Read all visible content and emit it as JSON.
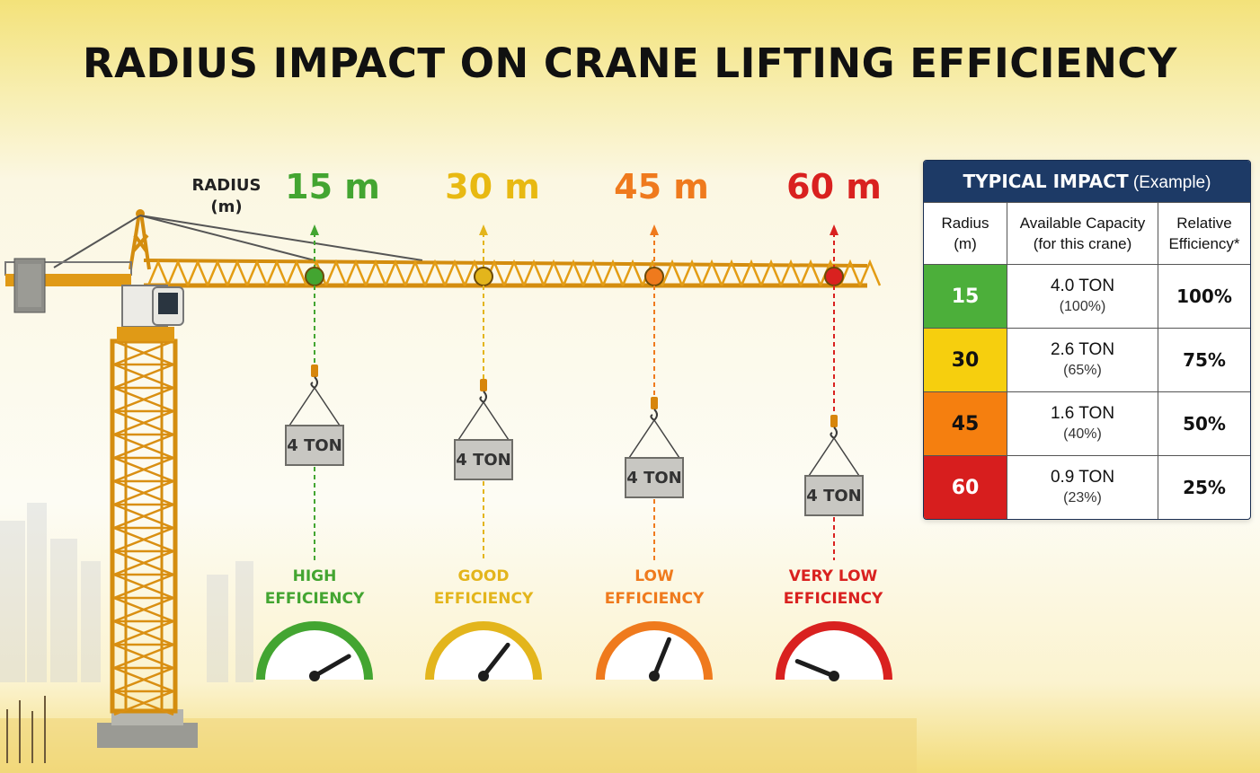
{
  "title": "RADIUS IMPACT ON CRANE LIFTING EFFICIENCY",
  "radius_caption": [
    "RADIUS",
    "(m)"
  ],
  "positions": [
    {
      "radius": "15 m",
      "load": "4 TON",
      "efficiency": [
        "HIGH",
        "EFFICIENCY"
      ],
      "color": "#43a531",
      "needle": "high"
    },
    {
      "radius": "30 m",
      "load": "4 TON",
      "efficiency": [
        "GOOD",
        "EFFICIENCY"
      ],
      "color": "#e3b51c",
      "needle": "good"
    },
    {
      "radius": "45 m",
      "load": "4 TON",
      "efficiency": [
        "LOW",
        "EFFICIENCY"
      ],
      "color": "#ef7a1d",
      "needle": "low"
    },
    {
      "radius": "60 m",
      "load": "4 TON",
      "efficiency": [
        "VERY LOW",
        "EFFICIENCY"
      ],
      "color": "#d9211f",
      "needle": "verylow"
    }
  ],
  "table": {
    "title_bold": "TYPICAL IMPACT",
    "title_rest": "(Example)",
    "headers": [
      [
        "Radius",
        "(m)"
      ],
      [
        "Available Capacity",
        "(for this crane)"
      ],
      [
        "Relative",
        "Efficiency*"
      ]
    ],
    "rows": [
      {
        "radius": "15",
        "capacity": "4.0 TON",
        "pct": "(100%)",
        "efficiency": "100%",
        "color": "#4caf3a",
        "text": "#ffffff"
      },
      {
        "radius": "30",
        "capacity": "2.6 TON",
        "pct": "(65%)",
        "efficiency": "75%",
        "color": "#f6cf0e",
        "text": "#111111"
      },
      {
        "radius": "45",
        "capacity": "1.6 TON",
        "pct": "(40%)",
        "efficiency": "50%",
        "color": "#f57f0f",
        "text": "#111111"
      },
      {
        "radius": "60",
        "capacity": "0.9 TON",
        "pct": "(23%)",
        "efficiency": "25%",
        "color": "#d71e1e",
        "text": "#ffffff"
      }
    ]
  }
}
